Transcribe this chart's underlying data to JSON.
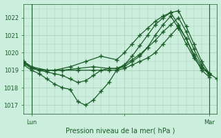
{
  "bg_color": "#cceedd",
  "grid_color": "#aaccbb",
  "line_color": "#1a5c28",
  "title": "Pression niveau de la mer( hPa )",
  "ylabel_ticks": [
    1017,
    1018,
    1019,
    1020,
    1021,
    1022
  ],
  "ylim": [
    1016.5,
    1022.8
  ],
  "xlim": [
    0,
    50
  ],
  "x_ticks": [
    2,
    26,
    48
  ],
  "x_labels": [
    "Lun",
    "",
    "Mar"
  ],
  "vline_lun": 2,
  "vline_mar": 48,
  "series": [
    {
      "x": [
        0,
        2,
        4,
        8,
        12,
        16,
        20,
        24,
        26,
        28,
        30,
        32,
        34,
        36,
        38,
        40,
        42,
        44,
        46,
        48,
        50
      ],
      "y": [
        1019.5,
        1019.1,
        1019.0,
        1019.0,
        1019.2,
        1019.5,
        1019.8,
        1019.6,
        1020.0,
        1020.5,
        1021.0,
        1021.4,
        1021.8,
        1022.1,
        1022.3,
        1022.4,
        1021.5,
        1020.5,
        1019.5,
        1018.8,
        1018.5
      ]
    },
    {
      "x": [
        0,
        2,
        4,
        6,
        8,
        10,
        12,
        14,
        16,
        18,
        20,
        22,
        24,
        26,
        28,
        30,
        32,
        34,
        36,
        38,
        40,
        42,
        44,
        46,
        48
      ],
      "y": [
        1019.3,
        1019.0,
        1018.8,
        1018.5,
        1018.2,
        1018.0,
        1017.9,
        1017.2,
        1017.0,
        1017.3,
        1017.8,
        1018.3,
        1019.0,
        1019.3,
        1019.8,
        1020.4,
        1021.0,
        1021.6,
        1022.0,
        1022.3,
        1021.6,
        1020.8,
        1019.8,
        1019.0,
        1018.6
      ]
    },
    {
      "x": [
        0,
        2,
        4,
        6,
        8,
        10,
        12,
        14,
        16,
        18,
        20,
        22,
        24,
        26,
        28,
        30,
        32,
        34,
        36,
        38,
        40,
        42,
        44,
        46,
        48
      ],
      "y": [
        1019.5,
        1019.2,
        1019.0,
        1018.9,
        1018.8,
        1018.7,
        1018.5,
        1018.3,
        1018.4,
        1018.7,
        1019.0,
        1019.1,
        1019.1,
        1019.2,
        1019.5,
        1019.8,
        1020.3,
        1021.0,
        1021.6,
        1022.1,
        1021.4,
        1020.5,
        1019.7,
        1019.1,
        1018.8
      ]
    },
    {
      "x": [
        0,
        2,
        6,
        10,
        14,
        18,
        22,
        24,
        26,
        28,
        30,
        32,
        34,
        36,
        38,
        40,
        42,
        44,
        46,
        48
      ],
      "y": [
        1019.5,
        1019.2,
        1019.0,
        1019.0,
        1019.1,
        1019.2,
        1019.1,
        1019.1,
        1019.3,
        1019.6,
        1019.9,
        1020.3,
        1020.7,
        1021.2,
        1021.6,
        1022.0,
        1021.2,
        1020.2,
        1019.3,
        1018.7
      ]
    },
    {
      "x": [
        0,
        2,
        6,
        10,
        14,
        18,
        22,
        24,
        26,
        28,
        30,
        32,
        34,
        36,
        38,
        40,
        42,
        44,
        46,
        48
      ],
      "y": [
        1019.4,
        1019.1,
        1019.0,
        1019.0,
        1019.0,
        1019.0,
        1019.0,
        1019.0,
        1019.1,
        1019.3,
        1019.5,
        1019.7,
        1020.0,
        1020.5,
        1021.0,
        1021.5,
        1020.8,
        1019.9,
        1019.2,
        1018.85
      ]
    }
  ],
  "marker": "+",
  "marker_size": 4,
  "linewidth": 0.9
}
